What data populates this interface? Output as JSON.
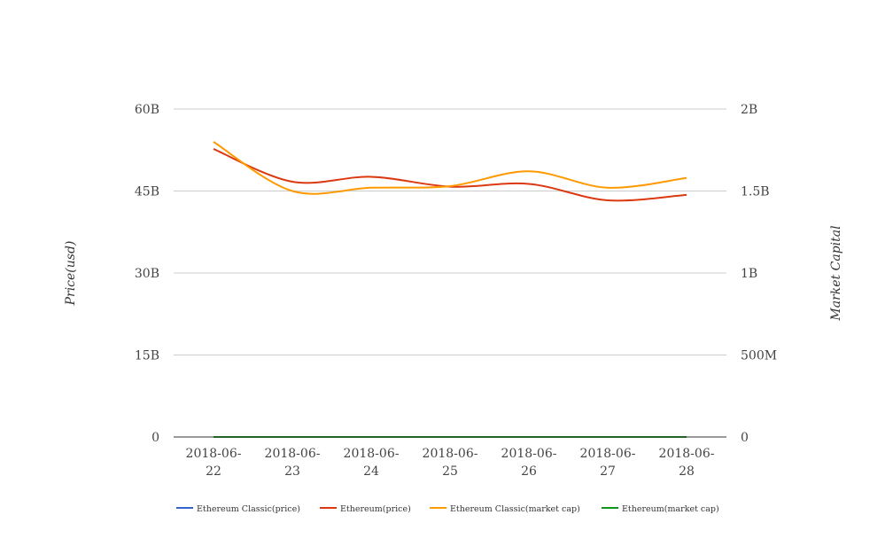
{
  "chart_data": {
    "type": "line",
    "categories": [
      "2018-06-22",
      "2018-06-23",
      "2018-06-24",
      "2018-06-25",
      "2018-06-26",
      "2018-06-27",
      "2018-06-28"
    ],
    "x_tick_lines": [
      [
        "2018-06-",
        "22"
      ],
      [
        "2018-06-",
        "23"
      ],
      [
        "2018-06-",
        "24"
      ],
      [
        "2018-06-",
        "25"
      ],
      [
        "2018-06-",
        "26"
      ],
      [
        "2018-06-",
        "27"
      ],
      [
        "2018-06-",
        "28"
      ]
    ],
    "y_left": {
      "label": "Price(usd)",
      "range": [
        0,
        60000000000
      ],
      "ticks": [
        0,
        15000000000,
        30000000000,
        45000000000,
        60000000000
      ],
      "tick_labels": [
        "0",
        "15B",
        "30B",
        "45B",
        "60B"
      ]
    },
    "y_right": {
      "label": "Market Capital",
      "range": [
        0,
        2000000000
      ],
      "ticks": [
        0,
        500000000,
        1000000000,
        1500000000,
        2000000000
      ],
      "tick_labels": [
        "0",
        "500M",
        "1B",
        "1.5B",
        "2B"
      ]
    },
    "grid": true,
    "legend_position": "bottom",
    "series": [
      {
        "name": "Ethereum Classic(price)",
        "axis": "left",
        "color": "#3366cc",
        "values": [
          0,
          0,
          0,
          0,
          0,
          0,
          0
        ]
      },
      {
        "name": "Ethereum(price)",
        "axis": "left",
        "color": "#dc3912",
        "values": [
          52700000000,
          46700000000,
          47600000000,
          45800000000,
          46300000000,
          43300000000,
          44300000000
        ]
      },
      {
        "name": "Ethereum Classic(market cap)",
        "axis": "right",
        "color": "#ff9900",
        "values": [
          1800000000,
          1500000000,
          1520000000,
          1530000000,
          1620000000,
          1520000000,
          1580000000
        ]
      },
      {
        "name": "Ethereum(market cap)",
        "axis": "right",
        "color": "#109618",
        "values": [
          0,
          0,
          0,
          0,
          0,
          0,
          0
        ]
      }
    ]
  }
}
